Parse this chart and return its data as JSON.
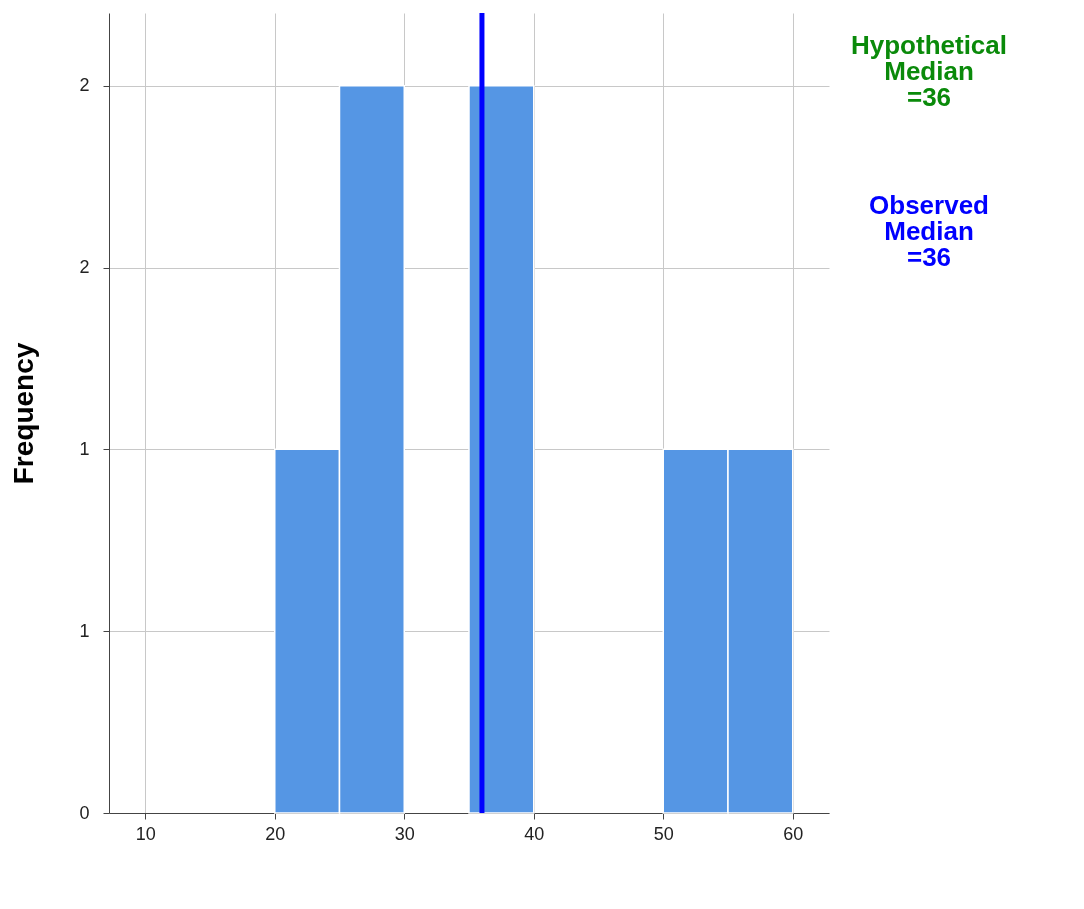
{
  "chart_data": {
    "type": "histogram",
    "ylabel": "Frequency",
    "bins": [
      20,
      25,
      30,
      35,
      40,
      45,
      50,
      55,
      60
    ],
    "values": [
      1,
      2,
      0,
      2,
      0,
      0,
      1,
      1
    ],
    "color": "#5596e4",
    "xlim": [
      7.2,
      62.8
    ],
    "xticks": [
      10,
      20,
      30,
      40,
      50,
      60
    ],
    "ylim": [
      0,
      2.2
    ],
    "yticks": [
      0,
      {
        "value": 0.5,
        "label": "1"
      },
      {
        "value": 1,
        "label": "1"
      },
      {
        "value": 1.5,
        "label": "2"
      },
      {
        "value": 2,
        "label": "2"
      }
    ],
    "grid": true,
    "annotations": [
      "Hypothetical Median =36"
    ],
    "ref_lines": [
      {
        "axis": "x",
        "value": 36,
        "label": "Observed Median =36",
        "color": "#0000ff"
      }
    ]
  }
}
